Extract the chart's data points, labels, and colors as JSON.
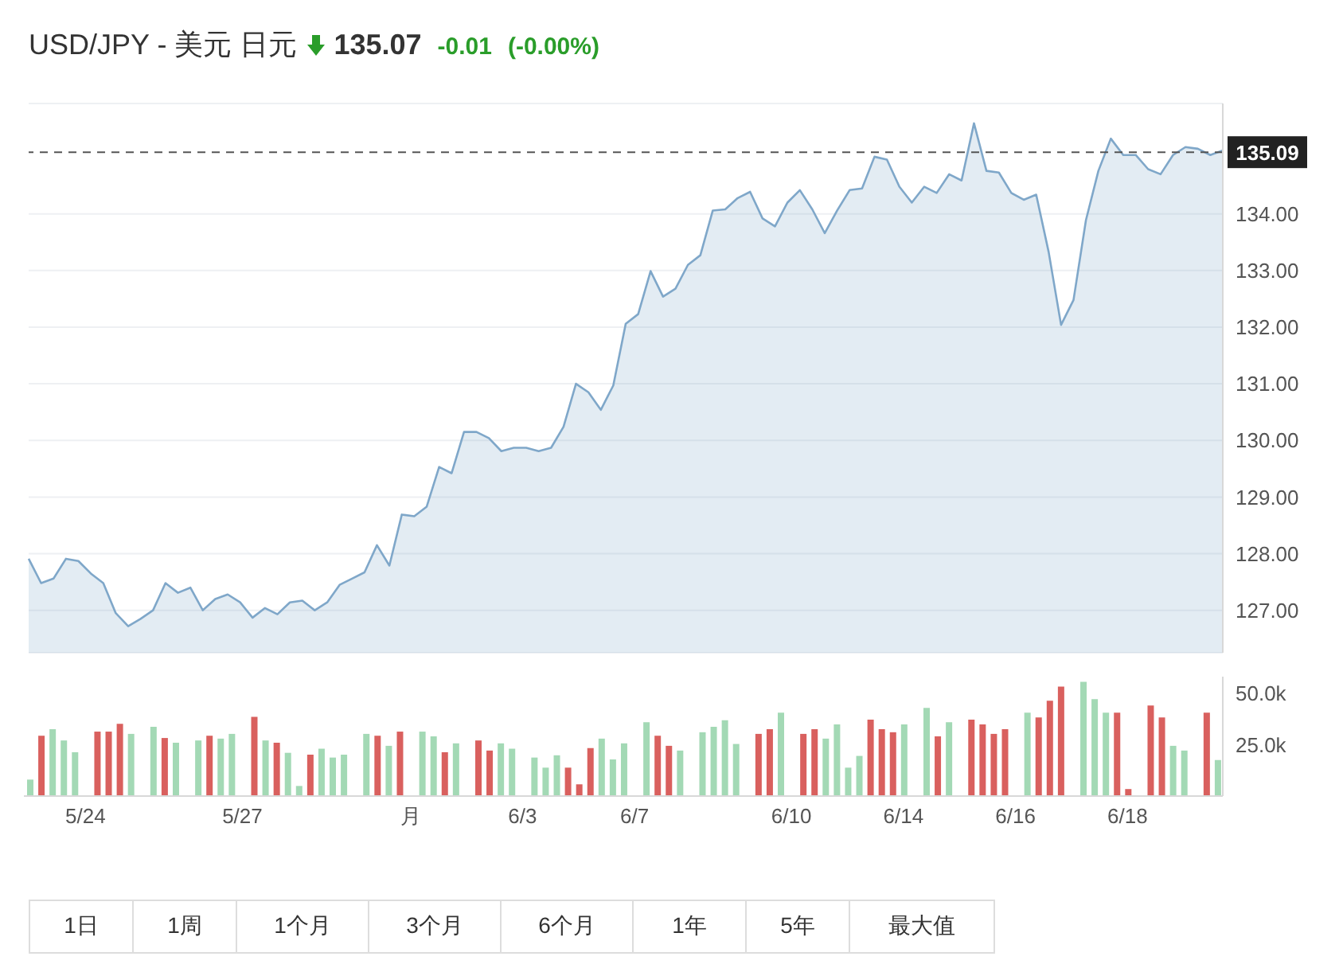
{
  "chart_data": [
    {
      "type": "area",
      "title": "USD/JPY - 美元 日元",
      "annotations": [
        "135.07",
        "-0.01",
        "(-0.00%)"
      ],
      "categories": [
        null,
        null,
        null,
        null,
        null,
        null,
        null,
        null,
        null,
        null,
        null,
        null,
        null,
        null,
        null,
        null,
        null,
        null,
        null,
        null,
        null,
        null,
        null,
        null,
        null,
        null,
        null,
        null,
        null,
        null,
        null,
        null,
        null,
        null,
        null,
        null,
        null,
        null,
        null,
        null,
        null,
        null,
        null,
        null,
        null,
        null,
        null,
        null,
        null,
        null,
        null,
        null,
        null,
        null,
        null,
        null,
        null,
        null,
        null,
        null,
        null,
        null,
        null,
        null,
        null,
        null,
        null,
        null,
        null,
        null,
        null,
        null,
        null,
        null,
        null,
        null,
        null,
        null,
        null,
        null,
        null,
        null,
        null,
        null,
        null,
        null,
        null,
        null,
        null,
        null,
        null,
        null,
        null,
        null,
        null,
        null,
        null
      ],
      "series": [
        {
          "color": "#7fa7c9",
          "values": [
            127.91,
            127.48,
            127.56,
            127.91,
            127.87,
            127.65,
            127.48,
            126.95,
            126.72,
            126.85,
            127.0,
            127.48,
            127.31,
            127.4,
            127.0,
            127.2,
            127.28,
            127.14,
            126.87,
            127.04,
            126.93,
            127.14,
            127.17,
            127.0,
            127.14,
            127.45,
            127.56,
            127.67,
            128.15,
            127.79,
            128.69,
            128.66,
            128.83,
            129.53,
            129.42,
            130.15,
            130.15,
            130.04,
            129.81,
            129.87,
            129.87,
            129.81,
            129.87,
            130.24,
            131.0,
            130.85,
            130.54,
            130.97,
            132.06,
            132.23,
            132.99,
            132.54,
            132.68,
            133.1,
            133.27,
            134.06,
            134.08,
            134.28,
            134.39,
            133.92,
            133.78,
            134.2,
            134.42,
            134.08,
            133.66,
            134.06,
            134.42,
            134.45,
            135.01,
            134.96,
            134.48,
            134.2,
            134.48,
            134.37,
            134.7,
            134.59,
            135.6,
            134.76,
            134.73,
            134.37,
            134.25,
            134.34,
            133.33,
            132.04,
            132.48,
            133.89,
            134.76,
            135.33,
            135.04,
            135.04,
            134.79,
            134.7,
            135.04,
            135.18,
            135.15,
            135.04,
            135.12
          ]
        }
      ],
      "ylim": [
        126.25,
        135.95
      ],
      "yticks": [
        {
          "value": 127,
          "label": "127.00"
        },
        {
          "value": 128,
          "label": "128.00"
        },
        {
          "value": 129,
          "label": "129.00"
        },
        {
          "value": 130,
          "label": "130.00"
        },
        {
          "value": 131,
          "label": "131.00"
        },
        {
          "value": 132,
          "label": "132.00"
        },
        {
          "value": 133,
          "label": "133.00"
        },
        {
          "value": 134,
          "label": "134.00"
        }
      ],
      "ref_lines": [
        {
          "axis": "y",
          "value": 135.09,
          "label": "135.09",
          "color": "#555555",
          "line_style": "dashed"
        }
      ],
      "tick_labels": "y",
      "grid": "y",
      "marker": "none"
    },
    {
      "type": "bar",
      "annotations": [
        "1日",
        "1周",
        "1个月",
        "3个月",
        "6个月",
        "1年",
        "5年",
        "最大值"
      ],
      "categories": [
        null,
        null,
        null,
        null,
        null,
        "5/24",
        null,
        null,
        null,
        null,
        null,
        null,
        null,
        null,
        null,
        null,
        null,
        null,
        null,
        "5/27",
        null,
        null,
        null,
        null,
        null,
        null,
        null,
        null,
        null,
        null,
        null,
        null,
        null,
        null,
        "月",
        null,
        null,
        null,
        null,
        null,
        null,
        null,
        null,
        null,
        "6/3",
        null,
        null,
        null,
        null,
        null,
        null,
        null,
        null,
        null,
        "6/7",
        null,
        null,
        null,
        null,
        null,
        null,
        null,
        null,
        null,
        null,
        null,
        null,
        null,
        "6/10",
        null,
        null,
        null,
        null,
        null,
        null,
        null,
        null,
        null,
        "6/14",
        null,
        null,
        null,
        null,
        null,
        null,
        null,
        null,
        null,
        "6/16",
        null,
        null,
        null,
        null,
        null,
        null,
        null,
        null,
        null,
        "6/18",
        null,
        null,
        null,
        null,
        null,
        null,
        null,
        null
      ],
      "values": [
        8000,
        29300,
        32500,
        27000,
        21300,
        null,
        31300,
        31300,
        35100,
        30200,
        null,
        33600,
        28200,
        25900,
        null,
        27000,
        29300,
        27900,
        30200,
        null,
        38500,
        27000,
        25900,
        21000,
        4900,
        20100,
        23000,
        18700,
        20100,
        null,
        30200,
        29300,
        24400,
        31300,
        null,
        31300,
        29000,
        21300,
        25600,
        null,
        27000,
        22100,
        25600,
        23000,
        null,
        18700,
        13800,
        19800,
        13800,
        5700,
        23300,
        27900,
        17800,
        25600,
        null,
        35900,
        29300,
        24400,
        22100,
        null,
        31000,
        33600,
        36800,
        25300,
        null,
        30200,
        32500,
        40500,
        null,
        30200,
        32500,
        27900,
        34800,
        13800,
        19500,
        37100,
        32500,
        31000,
        34800,
        null,
        42800,
        29000,
        35900,
        null,
        37100,
        34800,
        30200,
        32500,
        null,
        40500,
        38200,
        46300,
        53200,
        null,
        55500,
        47100,
        40500,
        40500,
        3400,
        null,
        44000,
        38200,
        24400,
        22100,
        null,
        40500,
        17500
      ],
      "colors": [
        "#a3d9b5",
        "#d9605e",
        "#a3d9b5",
        "#a3d9b5",
        "#a3d9b5",
        "#a3d9b5",
        "#d9605e",
        "#d9605e",
        "#d9605e",
        "#a3d9b5",
        "#a3d9b5",
        "#a3d9b5",
        "#d9605e",
        "#a3d9b5",
        "#a3d9b5",
        "#a3d9b5",
        "#d9605e",
        "#a3d9b5",
        "#a3d9b5",
        "#a3d9b5",
        "#d9605e",
        "#a3d9b5",
        "#d9605e",
        "#a3d9b5",
        "#a3d9b5",
        "#d9605e",
        "#a3d9b5",
        "#a3d9b5",
        "#a3d9b5",
        "#a3d9b5",
        "#a3d9b5",
        "#d9605e",
        "#a3d9b5",
        "#d9605e",
        "#a3d9b5",
        "#a3d9b5",
        "#a3d9b5",
        "#d9605e",
        "#a3d9b5",
        "#a3d9b5",
        "#d9605e",
        "#d9605e",
        "#a3d9b5",
        "#a3d9b5",
        "#a3d9b5",
        "#a3d9b5",
        "#a3d9b5",
        "#a3d9b5",
        "#d9605e",
        "#d9605e",
        "#d9605e",
        "#a3d9b5",
        "#a3d9b5",
        "#a3d9b5",
        "#a3d9b5",
        "#a3d9b5",
        "#d9605e",
        "#d9605e",
        "#a3d9b5",
        "#a3d9b5",
        "#a3d9b5",
        "#a3d9b5",
        "#a3d9b5",
        "#a3d9b5",
        "#a3d9b5",
        "#d9605e",
        "#d9605e",
        "#a3d9b5",
        "#a3d9b5",
        "#d9605e",
        "#d9605e",
        "#a3d9b5",
        "#a3d9b5",
        "#a3d9b5",
        "#a3d9b5",
        "#d9605e",
        "#d9605e",
        "#d9605e",
        "#a3d9b5",
        "#a3d9b5",
        "#a3d9b5",
        "#d9605e",
        "#a3d9b5",
        "#a3d9b5",
        "#d9605e",
        "#d9605e",
        "#d9605e",
        "#d9605e",
        "#a3d9b5",
        "#a3d9b5",
        "#d9605e",
        "#d9605e",
        "#d9605e",
        "#a3d9b5",
        "#a3d9b5",
        "#a3d9b5",
        "#a3d9b5",
        "#d9605e",
        "#d9605e",
        "#a3d9b5",
        "#d9605e",
        "#d9605e",
        "#a3d9b5",
        "#a3d9b5",
        "#a3d9b5",
        "#d9605e",
        "#a3d9b5"
      ],
      "ylim": [
        0,
        58000
      ],
      "yticks": [
        {
          "value": 25000,
          "label": "25.0k"
        },
        {
          "value": 50000,
          "label": "50.0k"
        }
      ],
      "grid": false
    }
  ]
}
